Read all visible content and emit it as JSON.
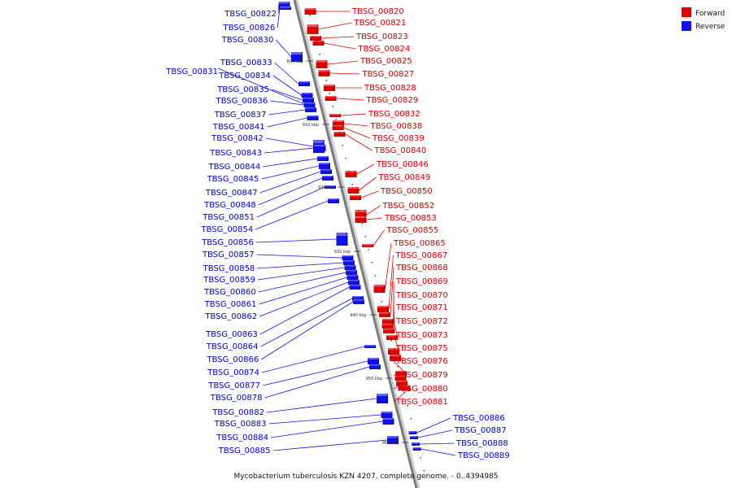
{
  "caption": "Mycobacterium tuberculosis KZN 4207, complete genome. - 0..4394985",
  "legend": [
    {
      "label": "Forward",
      "color": "#e00000"
    },
    {
      "label": "Reverse",
      "color": "#1010ee"
    }
  ],
  "colors": {
    "forward": "#e00000",
    "reverse": "#1010ee",
    "axis": "#888888"
  },
  "kbp_ticks": [
    "900 kbp",
    "910 kbp",
    "920 kbp",
    "930 kbp",
    "940 kbp",
    "950 kbp",
    "960 kbp"
  ],
  "forward_genes": [
    "TBSG_00820",
    "TBSG_00821",
    "TBSG_00823",
    "TBSG_00824",
    "TBSG_00825",
    "TBSG_00827",
    "TBSG_00828",
    "TBSG_00829",
    "TBSG_00832",
    "TBSG_00838",
    "TBSG_00839",
    "TBSG_00840",
    "TBSG_00846",
    "TBSG_00849",
    "TBSG_00850",
    "TBSG_00852",
    "TBSG_00853",
    "TBSG_00855",
    "TBSG_00865",
    "TBSG_00867",
    "TBSG_00868",
    "TBSG_00869",
    "TBSG_00870",
    "TBSG_00871",
    "TBSG_00872",
    "TBSG_00873",
    "TBSG_00875",
    "TBSG_00876",
    "TBSG_00879",
    "TBSG_00880",
    "TBSG_00881"
  ],
  "reverse_genes_left": [
    "TBSG_00822",
    "TBSG_00826",
    "TBSG_00830",
    "TBSG_00833",
    "TBSG_00834",
    "TBSG_00835",
    "TBSG_00836",
    "TBSG_00837",
    "TBSG_00841",
    "TBSG_00842",
    "TBSG_00843",
    "TBSG_00844",
    "TBSG_00845",
    "TBSG_00847",
    "TBSG_00848",
    "TBSG_00851",
    "TBSG_00854",
    "TBSG_00856",
    "TBSG_00857",
    "TBSG_00858",
    "TBSG_00859",
    "TBSG_00860",
    "TBSG_00861",
    "TBSG_00862",
    "TBSG_00863",
    "TBSG_00864",
    "TBSG_00866",
    "TBSG_00874",
    "TBSG_00877",
    "TBSG_00878",
    "TBSG_00882",
    "TBSG_00883",
    "TBSG_00884",
    "TBSG_00885"
  ],
  "reverse_gene_far_left": "TBSG_00831",
  "reverse_genes_right": [
    "TBSG_00886",
    "TBSG_00887",
    "TBSG_00888",
    "TBSG_00889"
  ]
}
